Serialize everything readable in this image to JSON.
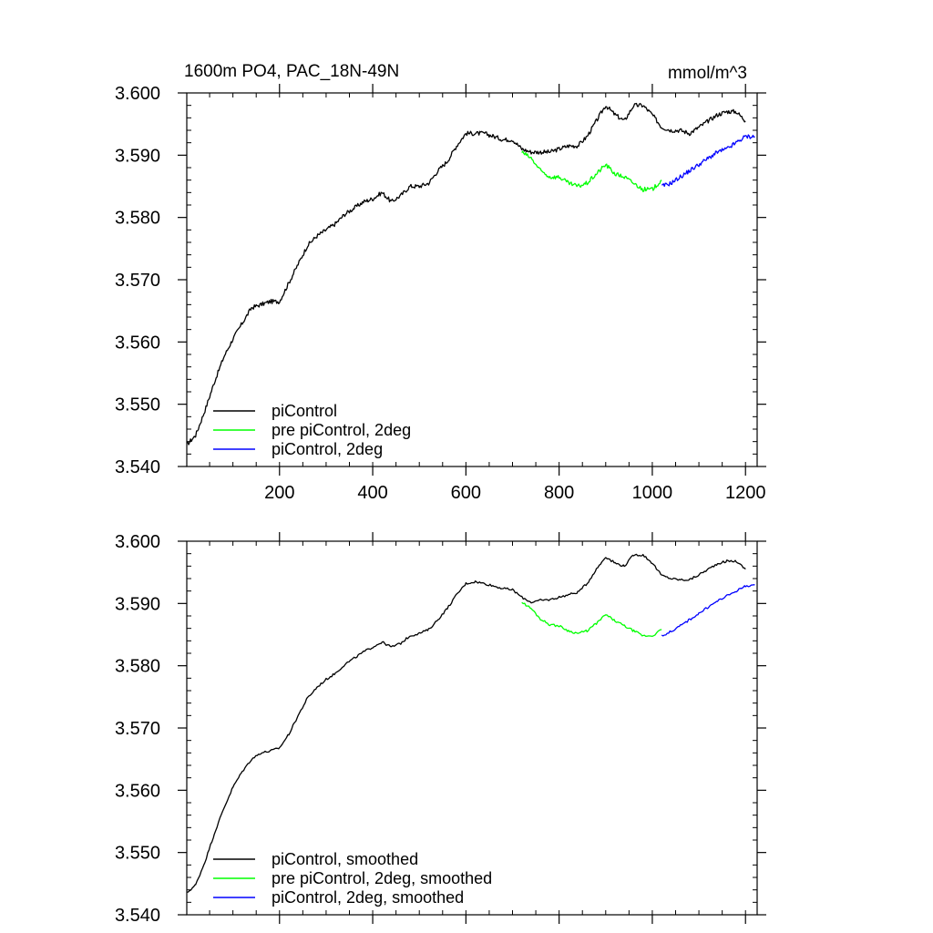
{
  "colors": {
    "piControl": "#000000",
    "pre_piControl_2deg": "#00ff00",
    "piControl_2deg": "#0000ff"
  },
  "chart_data": [
    {
      "type": "line",
      "title": "1600m PO4, PAC_18N-49N",
      "units": "mmol/m^3",
      "xlabel": "",
      "ylabel": "",
      "xlim": [
        1,
        1225
      ],
      "ylim": [
        3.54,
        3.6
      ],
      "x_ticks": [
        200,
        400,
        600,
        800,
        1000,
        1200
      ],
      "x_tick_labels": [
        "200",
        "400",
        "600",
        "800",
        "1000",
        "1200"
      ],
      "y_ticks": [
        3.54,
        3.55,
        3.56,
        3.57,
        3.58,
        3.59,
        3.6
      ],
      "y_tick_labels": [
        "3.540",
        "3.550",
        "3.560",
        "3.570",
        "3.580",
        "3.590",
        "3.600"
      ],
      "grid": false,
      "legend_position": "bottom-left",
      "smoothed": false,
      "series": [
        {
          "name": "piControl",
          "color": "#000000",
          "x": [
            1,
            20,
            40,
            60,
            80,
            100,
            120,
            140,
            160,
            180,
            200,
            220,
            240,
            260,
            280,
            300,
            320,
            340,
            360,
            380,
            400,
            420,
            440,
            460,
            480,
            500,
            520,
            540,
            560,
            580,
            600,
            620,
            640,
            660,
            680,
            700,
            720,
            740,
            760,
            780,
            800,
            820,
            840,
            860,
            880,
            900,
            920,
            940,
            960,
            980,
            1000,
            1020,
            1040,
            1060,
            1080,
            1100,
            1120,
            1140,
            1160,
            1180,
            1200
          ],
          "y": [
            3.5435,
            3.545,
            3.549,
            3.5535,
            3.5575,
            3.5605,
            3.563,
            3.5655,
            3.566,
            3.5665,
            3.5665,
            3.5695,
            3.5725,
            3.5755,
            3.577,
            3.578,
            3.579,
            3.5805,
            3.5815,
            3.5825,
            3.583,
            3.584,
            3.5825,
            3.5835,
            3.585,
            3.585,
            3.5855,
            3.5875,
            3.589,
            3.5915,
            3.5935,
            3.5935,
            3.5935,
            3.593,
            3.5925,
            3.5925,
            3.591,
            3.5905,
            3.5905,
            3.5905,
            3.591,
            3.5915,
            3.5915,
            3.593,
            3.5955,
            3.598,
            3.5965,
            3.5955,
            3.598,
            3.598,
            3.5965,
            3.5945,
            3.594,
            3.594,
            3.5935,
            3.5945,
            3.5955,
            3.5965,
            3.597,
            3.597,
            3.5955
          ]
        },
        {
          "name": "pre piControl, 2deg",
          "color": "#00ff00",
          "x": [
            720,
            740,
            760,
            780,
            800,
            820,
            840,
            860,
            880,
            900,
            920,
            940,
            960,
            980,
            1000,
            1020
          ],
          "y": [
            3.5905,
            3.5895,
            3.5875,
            3.5865,
            3.5865,
            3.5855,
            3.585,
            3.5855,
            3.587,
            3.5885,
            3.587,
            3.5865,
            3.5855,
            3.5845,
            3.5845,
            3.586
          ]
        },
        {
          "name": "piControl, 2deg",
          "color": "#0000ff",
          "x": [
            1020,
            1040,
            1060,
            1080,
            1100,
            1120,
            1140,
            1160,
            1180,
            1200,
            1220
          ],
          "y": [
            3.585,
            3.5855,
            3.5865,
            3.5875,
            3.5885,
            3.5895,
            3.5905,
            3.591,
            3.592,
            3.593,
            3.593
          ]
        }
      ]
    },
    {
      "type": "line",
      "title": "",
      "xlabel": "",
      "ylabel": "",
      "xlim": [
        1,
        1225
      ],
      "ylim": [
        3.54,
        3.6
      ],
      "x_ticks": [
        200,
        400,
        600,
        800,
        1000,
        1200
      ],
      "y_ticks": [
        3.54,
        3.55,
        3.56,
        3.57,
        3.58,
        3.59,
        3.6
      ],
      "y_tick_labels": [
        "3.540",
        "3.550",
        "3.560",
        "3.570",
        "3.580",
        "3.590",
        "3.600"
      ],
      "grid": false,
      "legend_position": "bottom-left",
      "smoothed": true,
      "series": [
        {
          "name": "piControl, smoothed",
          "color": "#000000",
          "x": [
            1,
            20,
            40,
            60,
            80,
            100,
            120,
            140,
            160,
            180,
            200,
            220,
            240,
            260,
            280,
            300,
            320,
            340,
            360,
            380,
            400,
            420,
            440,
            460,
            480,
            500,
            520,
            540,
            560,
            580,
            600,
            620,
            640,
            660,
            680,
            700,
            720,
            740,
            760,
            780,
            800,
            820,
            840,
            860,
            880,
            900,
            920,
            940,
            960,
            980,
            1000,
            1020,
            1040,
            1060,
            1080,
            1100,
            1120,
            1140,
            1160,
            1180,
            1200
          ],
          "y": [
            3.5435,
            3.5448,
            3.5485,
            3.553,
            3.557,
            3.5605,
            3.563,
            3.565,
            3.566,
            3.5663,
            3.5668,
            3.569,
            3.572,
            3.5748,
            3.5765,
            3.5778,
            3.5788,
            3.5802,
            3.5812,
            3.5822,
            3.583,
            3.5838,
            3.583,
            3.5836,
            3.5848,
            3.5852,
            3.5858,
            3.5874,
            3.5892,
            3.5914,
            3.5932,
            3.5935,
            3.5932,
            3.5928,
            3.5924,
            3.5922,
            3.591,
            3.5902,
            3.5905,
            3.5906,
            3.591,
            3.5914,
            3.5918,
            3.5932,
            3.5955,
            3.5975,
            3.5965,
            3.596,
            3.5978,
            3.5978,
            3.5965,
            3.5945,
            3.594,
            3.5938,
            3.5938,
            3.5946,
            3.5955,
            3.5964,
            3.5968,
            3.5968,
            3.5955
          ]
        },
        {
          "name": "pre piControl, 2deg, smoothed",
          "color": "#00ff00",
          "x": [
            720,
            740,
            760,
            780,
            800,
            820,
            840,
            860,
            880,
            900,
            920,
            940,
            960,
            980,
            1000,
            1020
          ],
          "y": [
            3.5902,
            3.5892,
            3.5875,
            3.5866,
            3.5864,
            3.5856,
            3.5852,
            3.5856,
            3.5868,
            3.5882,
            3.5872,
            3.5864,
            3.5856,
            3.5848,
            3.5848,
            3.5858
          ]
        },
        {
          "name": "piControl, 2deg, smoothed",
          "color": "#0000ff",
          "x": [
            1020,
            1040,
            1060,
            1080,
            1100,
            1120,
            1140,
            1160,
            1180,
            1200,
            1220
          ],
          "y": [
            3.5848,
            3.5855,
            3.5864,
            3.5874,
            3.5884,
            3.5894,
            3.5904,
            3.5912,
            3.592,
            3.5928,
            3.593
          ]
        }
      ]
    }
  ]
}
